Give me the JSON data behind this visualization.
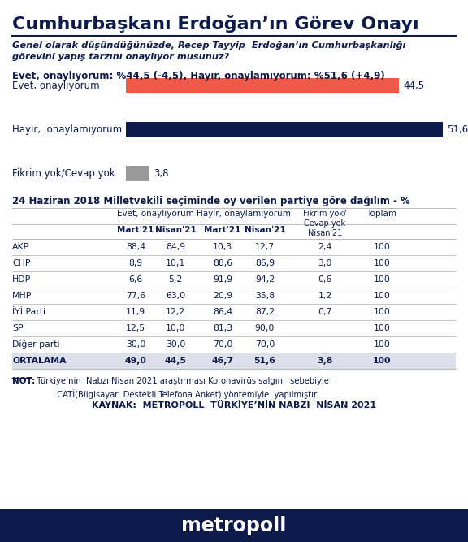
{
  "title": "Cumhurbaşkanı Erdoğan’ın Görev Onayı",
  "subtitle_line1": "Genel olarak düşündüğünüzde, Recep Tayyip  Erdoğan’ın Cumhurbaşkanlığı",
  "subtitle_line2": "görevini yapış tarzını onaylıyor musunuz?",
  "summary": "Evet, onaylıyorum: %44,5 (-4,5), Hayır, onaylamıyorum: %51,6 (+4,9)",
  "bars": [
    {
      "label": "Evet, onaylıyorum",
      "value": 44.5,
      "color": "#F05A4A",
      "display": "44,5"
    },
    {
      "label": "Hayır,  onaylamıyorum",
      "value": 51.6,
      "color": "#0D1B4B",
      "display": "51,6"
    },
    {
      "label": "Fikrim yok/Cevap yok",
      "value": 3.8,
      "color": "#999999",
      "display": "3,8"
    }
  ],
  "table_title": "24 Haziran 2018 Milletvekili seçiminde oy verilen partiye göre dağılım - %",
  "parties": [
    "AKP",
    "CHP",
    "HDP",
    "MHP",
    "İYİ Parti",
    "SP",
    "Diğer parti",
    "ORTALAMA"
  ],
  "table_data": [
    [
      "88,4",
      "84,9",
      "10,3",
      "12,7",
      "2,4",
      "100"
    ],
    [
      "8,9",
      "10,1",
      "88,6",
      "86,9",
      "3,0",
      "100"
    ],
    [
      "6,6",
      "5,2",
      "91,9",
      "94,2",
      "0,6",
      "100"
    ],
    [
      "77,6",
      "63,0",
      "20,9",
      "35,8",
      "1,2",
      "100"
    ],
    [
      "11,9",
      "12,2",
      "86,4",
      "87,2",
      "0,7",
      "100"
    ],
    [
      "12,5",
      "10,0",
      "81,3",
      "90,0",
      "",
      "100"
    ],
    [
      "30,0",
      "30,0",
      "70,0",
      "70,0",
      "",
      "100"
    ],
    [
      "49,0",
      "44,5",
      "46,7",
      "51,6",
      "3,8",
      "100"
    ]
  ],
  "note_bold": "NOT:",
  "note_text": "  Türkiye’nin  Nabzı Nisan 2021 araştırması Koronavirüs salgını  sebebiyle\n          CATİ(Bilgisayar  Destekli Telefona Anket) yöntemiyle  yapılmıştır.",
  "source": "KAYNAK:  METROPOLL  TÜRKİYE’NİN NABZI  NİSAN 2021",
  "footer": "metropoll",
  "bg_color": "#FFFFFF",
  "text_color": "#0D1B4B",
  "footer_bg": "#0D1B4B",
  "footer_text_color": "#FFFFFF",
  "ortalama_bg": "#DDE0EB"
}
